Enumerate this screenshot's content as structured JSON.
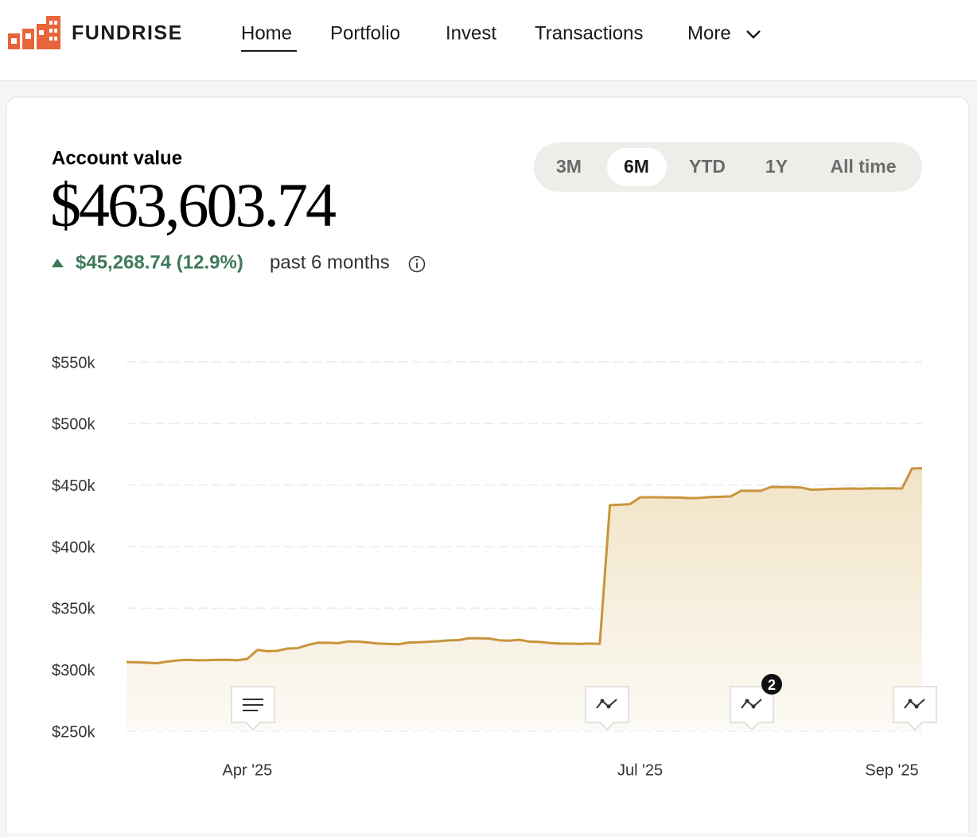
{
  "nav": {
    "brand": "FUNDRISE",
    "items": [
      "Home",
      "Portfolio",
      "Invest",
      "Transactions",
      "More"
    ]
  },
  "account": {
    "label": "Account value",
    "value": "$463,603.74",
    "change": "$45,268.74 (12.9%)",
    "period": "past 6 months"
  },
  "ranges": [
    "3M",
    "6M",
    "YTD",
    "1Y",
    "All time"
  ],
  "chart_data": {
    "type": "area",
    "categories": [
      null,
      null,
      null,
      null,
      null,
      null,
      null,
      null,
      null,
      null,
      null,
      null,
      "Apr '25",
      null,
      null,
      null,
      null,
      null,
      null,
      null,
      null,
      null,
      null,
      null,
      null,
      null,
      null,
      null,
      null,
      null,
      null,
      null,
      null,
      null,
      null,
      null,
      null,
      null,
      null,
      null,
      null,
      null,
      null,
      null,
      null,
      null,
      null,
      null,
      null,
      null,
      null,
      "Jul '25",
      null,
      null,
      null,
      null,
      null,
      null,
      null,
      null,
      null,
      null,
      null,
      null,
      null,
      null,
      null,
      null,
      null,
      null,
      null,
      null,
      null,
      null,
      null,
      null,
      "Sep '25",
      null,
      null,
      null
    ],
    "series": [
      {
        "color": "#c8953c",
        "values": [
          306200,
          306000,
          305700,
          305200,
          306500,
          307500,
          308000,
          307600,
          307700,
          307900,
          308000,
          307600,
          308800,
          316000,
          315000,
          315300,
          317200,
          317500,
          320000,
          321900,
          321800,
          321500,
          322900,
          322800,
          322100,
          321200,
          321000,
          320600,
          322000,
          322300,
          322700,
          323100,
          323800,
          324000,
          325600,
          325500,
          325300,
          323900,
          323500,
          324300,
          322800,
          322600,
          321700,
          321200,
          321100,
          321000,
          321200,
          321000,
          433700,
          434000,
          434500,
          440000,
          440100,
          440000,
          439900,
          439800,
          439400,
          439600,
          440300,
          440500,
          440800,
          445300,
          445400,
          445300,
          448500,
          448400,
          448300,
          448000,
          446200,
          446500,
          446900,
          447000,
          447200,
          447100,
          447300,
          447200,
          447300,
          447200,
          463400,
          463603.74
        ]
      }
    ],
    "ylim": [
      250000,
      550000
    ],
    "yticks": [
      {
        "value": 250000,
        "label": "$250k"
      },
      {
        "value": 300000,
        "label": "$300k"
      },
      {
        "value": 350000,
        "label": "$350k"
      },
      {
        "value": 400000,
        "label": "$400k"
      },
      {
        "value": 450000,
        "label": "$450k"
      },
      {
        "value": 500000,
        "label": "$500k"
      },
      {
        "value": 550000,
        "label": "$550k"
      }
    ],
    "grid": true,
    "annotations": [
      "2"
    ]
  }
}
